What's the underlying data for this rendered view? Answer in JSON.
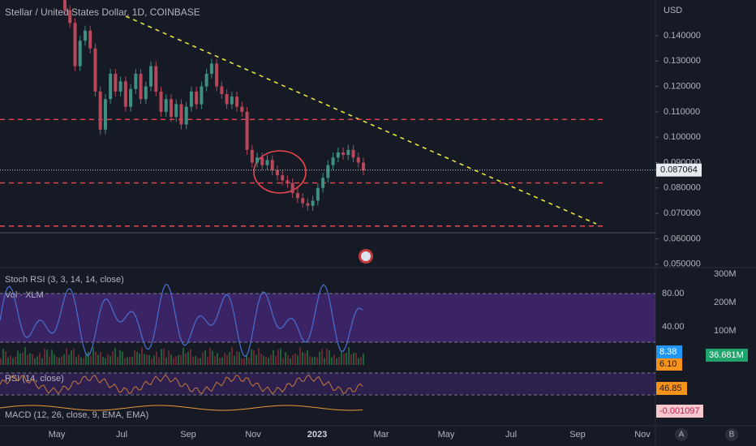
{
  "header": {
    "title": "Stellar / United States Dollar, 1D, COINBASE",
    "currency": "USD"
  },
  "price_axis": {
    "ticks": [
      {
        "value": 0.14,
        "label": "0.140000"
      },
      {
        "value": 0.13,
        "label": "0.130000"
      },
      {
        "value": 0.12,
        "label": "0.120000"
      },
      {
        "value": 0.11,
        "label": "0.110000"
      },
      {
        "value": 0.1,
        "label": "0.100000"
      },
      {
        "value": 0.09,
        "label": "0.090000"
      },
      {
        "value": 0.08,
        "label": "0.080000"
      },
      {
        "value": 0.07,
        "label": "0.070000"
      },
      {
        "value": 0.06,
        "label": "0.060000"
      },
      {
        "value": 0.05,
        "label": "0.050000"
      }
    ],
    "last_price": 0.087064
  },
  "price_series": {
    "closes": [
      0.15,
      0.145,
      0.128,
      0.138,
      0.142,
      0.135,
      0.118,
      0.103,
      0.115,
      0.125,
      0.118,
      0.122,
      0.112,
      0.119,
      0.125,
      0.115,
      0.12,
      0.128,
      0.118,
      0.11,
      0.115,
      0.108,
      0.113,
      0.105,
      0.112,
      0.118,
      0.113,
      0.12,
      0.125,
      0.129,
      0.12,
      0.117,
      0.113,
      0.116,
      0.112,
      0.11,
      0.095,
      0.09,
      0.092,
      0.089,
      0.091,
      0.087,
      0.085,
      0.083,
      0.082,
      0.078,
      0.076,
      0.074,
      0.073,
      0.075,
      0.08,
      0.084,
      0.089,
      0.092,
      0.094,
      0.093,
      0.095,
      0.092,
      0.09,
      0.087
    ]
  },
  "levels": [
    0.107,
    0.082,
    0.065
  ],
  "indicators": {
    "stoch_rsi": {
      "label": "Stoch RSI (3, 3, 14, 14, close)",
      "ticks": [
        {
          "value": 80,
          "label": "80.00"
        },
        {
          "value": 40,
          "label": "40.00"
        }
      ],
      "k": 8.38,
      "d": {
        "value": 6.1,
        "label": "6.10"
      }
    },
    "volume": {
      "label": "Vol · XLM",
      "ticks": [
        {
          "value": 300000000,
          "label": "300M"
        },
        {
          "value": 200000000,
          "label": "200M"
        },
        {
          "value": 100000000,
          "label": "100M"
        }
      ],
      "last": {
        "value": 36681000,
        "label": "36.681M"
      }
    },
    "rsi": {
      "label": "RSI (14, close)",
      "last": 46.85
    },
    "macd": {
      "label": "MACD (12, 26, close, 9, EMA, EMA)",
      "last": -0.001097
    }
  },
  "time_axis": [
    "May",
    "Jul",
    "Sep",
    "Nov",
    "2023",
    "Mar",
    "May",
    "Jul",
    "Sep",
    "Nov"
  ],
  "buttons": [
    "A",
    "B"
  ]
}
